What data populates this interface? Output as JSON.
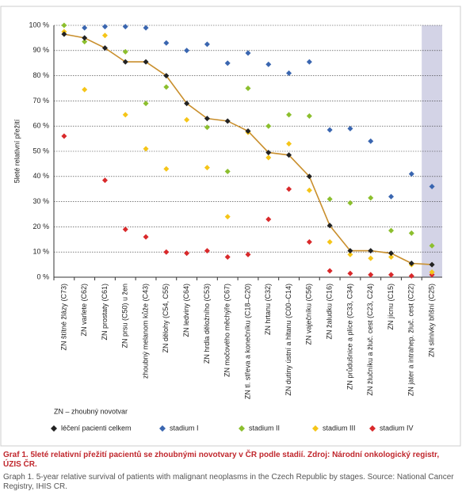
{
  "chart_data": {
    "type": "line",
    "y_label": "5leté relativní přežití",
    "note": "ZN – zhoubný novotvar",
    "categories": [
      "ZN štítné žlázy (C73)",
      "ZN varlete (C62)",
      "ZN prostaty (C61)",
      "ZN prsu (C50) u žen",
      "zhoubný melanom kůže (C43)",
      "ZN dělohy (C54, C55)",
      "ZN ledviny (C64)",
      "ZN hrdla děložního (C53)",
      "ZN močového měchýře (C67)",
      "ZN tl. střeva a konečníku (C18–C20)",
      "ZN hrtanu (C32)",
      "ZN dutiny ústní a hltanu (C00–C14)",
      "ZN vaječníku (C56)",
      "ZN žaludku (C16)",
      "ZN průdušnice a plíce (C33, C34)",
      "ZN žlučníku a žluč. cest (C23, C24)",
      "ZN jícnu (C15)",
      "ZN jater a intrahep. žluč. cest (C22)",
      "ZN slinivky břišní (C25)"
    ],
    "highlight_category": 18,
    "highlight_color": "#d3d3e6",
    "line_color": "#c98f2d",
    "series": [
      {
        "name": "léčení pacienti celkem",
        "color": "#222222",
        "line": true,
        "values": [
          96.5,
          95,
          91,
          85.5,
          85.5,
          80,
          69,
          63,
          62,
          58,
          49.5,
          48.5,
          40,
          20.5,
          10.5,
          10.5,
          9.5,
          5.5,
          5
        ]
      },
      {
        "name": "stadium I",
        "color": "#3a66b0",
        "values": [
          null,
          99,
          99.5,
          99.5,
          99,
          93,
          90,
          92.5,
          85,
          89,
          84.5,
          81,
          85.5,
          58.5,
          59,
          54,
          32,
          41,
          36
        ]
      },
      {
        "name": "stadium II",
        "color": "#8cbf2e",
        "values": [
          100,
          93.5,
          null,
          89.5,
          69,
          75.5,
          null,
          59.5,
          42,
          75,
          60,
          64.5,
          64,
          31,
          29.5,
          31.5,
          18.5,
          17.5,
          12.5
        ]
      },
      {
        "name": "stadium III",
        "color": "#f5c518",
        "values": [
          97.5,
          74.5,
          96,
          64.5,
          51,
          43,
          62.5,
          43.5,
          24,
          57.5,
          47.5,
          53,
          34.5,
          14,
          9,
          7.5,
          8,
          5,
          2
        ]
      },
      {
        "name": "stadium IV",
        "color": "#d9292b",
        "values": [
          56,
          null,
          38.5,
          19,
          16,
          10,
          9.5,
          10.5,
          8,
          9,
          23,
          35,
          14,
          2.5,
          1.5,
          1,
          1,
          0.5,
          1
        ]
      }
    ],
    "ylim": [
      0,
      100
    ],
    "yticks": [
      {
        "value": 0,
        "label": "0 %"
      },
      {
        "value": 10,
        "label": "10 %"
      },
      {
        "value": 20,
        "label": "20 %"
      },
      {
        "value": 30,
        "label": "30 %"
      },
      {
        "value": 40,
        "label": "40 %"
      },
      {
        "value": 50,
        "label": "50 %"
      },
      {
        "value": 60,
        "label": "60 %"
      },
      {
        "value": 70,
        "label": "70 %"
      },
      {
        "value": 80,
        "label": "80 %"
      },
      {
        "value": 90,
        "label": "90 %"
      },
      {
        "value": 100,
        "label": "100 %"
      }
    ],
    "grid": true
  },
  "caption": {
    "czech": "Graf 1. 5leté relativní přežití pacientů se zhoubnými novotvary v ČR podle stadií. Zdroj: Národní onkologický registr, ÚZIS ČR.",
    "english": "Graph 1. 5-year relative survival of patients with malignant neoplasms in the Czech Republic by stages. Source: National Cancer Registry, IHIS CR."
  }
}
